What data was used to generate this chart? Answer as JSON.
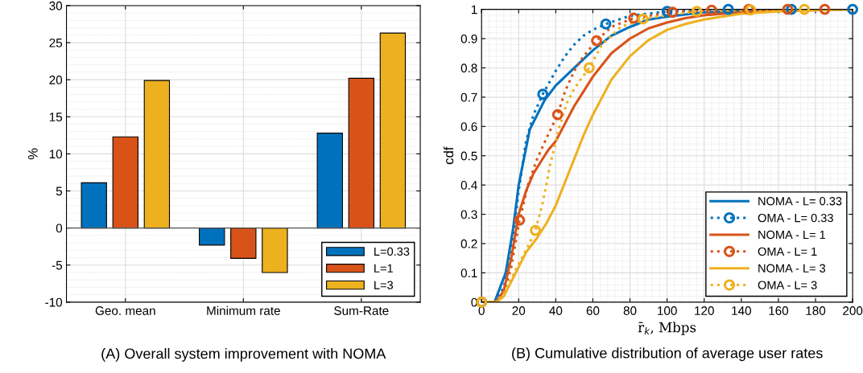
{
  "chart_data": [
    {
      "type": "bar",
      "title": "(A) Overall system improvement with NOMA",
      "ylabel": "%",
      "categories": [
        "Geo. mean",
        "Minimum rate",
        "Sum-Rate"
      ],
      "series": [
        {
          "name": "L=0.33",
          "color": "#0072bd",
          "values": [
            6.1,
            -2.3,
            12.8
          ]
        },
        {
          "name": "L=1",
          "color": "#d95319",
          "values": [
            12.3,
            -4.1,
            20.2
          ]
        },
        {
          "name": "L=3",
          "color": "#edb120",
          "values": [
            19.9,
            -6.0,
            26.3
          ]
        }
      ],
      "ylim": [
        -10,
        30
      ],
      "yticks": [
        -10,
        -5,
        0,
        5,
        10,
        15,
        20,
        25,
        30
      ],
      "grid": true,
      "legend": "bottom right"
    },
    {
      "type": "line",
      "title": "(B) Cumulative distribution of average user rates",
      "xlabel": "r̄$_{k}$, Mbps",
      "ylabel": "cdf",
      "series": [
        {
          "name": "NOMA - L= 0.33",
          "color": "#0072bd",
          "line_style": "solid",
          "x": [
            0,
            7,
            13,
            17,
            20,
            26,
            34,
            40,
            50,
            60,
            70,
            80,
            90,
            100,
            120,
            140,
            200
          ],
          "values": [
            0,
            0,
            0.1,
            0.25,
            0.4,
            0.59,
            0.69,
            0.74,
            0.8,
            0.86,
            0.91,
            0.94,
            0.965,
            0.975,
            0.99,
            0.995,
            1
          ]
        },
        {
          "name": "OMA - L= 0.33",
          "color": "#0072bd",
          "line_style": "dotted",
          "x": [
            0,
            7,
            12,
            16,
            20,
            24,
            28,
            33,
            40,
            45,
            50,
            55,
            60,
            67,
            80,
            100,
            133,
            200
          ],
          "values": [
            0,
            0,
            0.05,
            0.17,
            0.38,
            0.55,
            0.64,
            0.71,
            0.79,
            0.84,
            0.88,
            0.91,
            0.93,
            0.95,
            0.978,
            0.993,
            1,
            1
          ]
        },
        {
          "type": "scatter",
          "color": "#0072bd",
          "marker": "circle",
          "x": [
            0,
            33,
            67,
            100,
            133,
            167,
            200
          ],
          "values": [
            0,
            0.71,
            0.95,
            0.993,
            1,
            1,
            1
          ]
        },
        {
          "name": "NOMA - L= 1",
          "color": "#d95319",
          "line_style": "solid",
          "x": [
            0,
            8,
            12,
            16,
            20,
            24,
            28,
            32,
            36,
            40,
            45,
            50,
            55,
            60,
            65,
            70,
            80,
            90,
            100,
            110,
            120,
            140,
            160,
            200
          ],
          "values": [
            0,
            0,
            0.04,
            0.15,
            0.3,
            0.38,
            0.44,
            0.48,
            0.52,
            0.55,
            0.61,
            0.67,
            0.72,
            0.77,
            0.81,
            0.85,
            0.9,
            0.935,
            0.955,
            0.97,
            0.98,
            0.99,
            0.996,
            1
          ]
        },
        {
          "name": "OMA - L= 1",
          "color": "#d95319",
          "line_style": "dotted",
          "x": [
            0,
            7,
            12,
            16,
            20.5,
            25,
            30,
            35,
            41,
            45,
            50,
            55,
            62,
            70,
            82,
            103,
            124,
            144,
            200
          ],
          "values": [
            0,
            0,
            0.03,
            0.12,
            0.28,
            0.4,
            0.49,
            0.56,
            0.64,
            0.72,
            0.79,
            0.84,
            0.893,
            0.94,
            0.97,
            0.99,
            0.997,
            1,
            1
          ]
        },
        {
          "type": "scatter",
          "color": "#d95319",
          "marker": "circle",
          "x": [
            0,
            20.5,
            41,
            62,
            82,
            103,
            124,
            144,
            165,
            185
          ],
          "values": [
            0,
            0.28,
            0.64,
            0.893,
            0.97,
            0.99,
            0.997,
            1,
            1,
            1
          ]
        },
        {
          "name": "NOMA - L= 3",
          "color": "#edb120",
          "line_style": "solid",
          "x": [
            0,
            8,
            12,
            16,
            20,
            24,
            30,
            35,
            40,
            45,
            50,
            55,
            60,
            65,
            70,
            80,
            90,
            100,
            110,
            120,
            140,
            160,
            200
          ],
          "values": [
            0,
            0,
            0.02,
            0.07,
            0.12,
            0.17,
            0.22,
            0.27,
            0.33,
            0.41,
            0.49,
            0.57,
            0.64,
            0.7,
            0.76,
            0.84,
            0.895,
            0.93,
            0.95,
            0.965,
            0.985,
            0.993,
            1
          ]
        },
        {
          "name": "OMA - L= 3",
          "color": "#edb120",
          "line_style": "dotted",
          "x": [
            0,
            8,
            12,
            16,
            20,
            25,
            29,
            33,
            37,
            42,
            46,
            50,
            58,
            65,
            75,
            87,
            100,
            116,
            145,
            200
          ],
          "values": [
            0,
            0,
            0.03,
            0.08,
            0.13,
            0.19,
            0.245,
            0.34,
            0.47,
            0.6,
            0.68,
            0.73,
            0.8,
            0.88,
            0.94,
            0.967,
            0.98,
            0.993,
            0.998,
            1
          ]
        },
        {
          "type": "scatter",
          "color": "#edb120",
          "marker": "circle",
          "x": [
            0,
            29,
            58,
            87,
            116,
            145,
            174
          ],
          "values": [
            0,
            0.245,
            0.8,
            0.967,
            0.993,
            0.998,
            1
          ]
        }
      ],
      "xlim": [
        0,
        200
      ],
      "xticks": [
        0,
        20,
        40,
        60,
        80,
        100,
        120,
        140,
        160,
        180,
        200
      ],
      "ylim": [
        0,
        1
      ],
      "yticks": [
        0,
        0.1,
        0.2,
        0.3,
        0.4,
        0.5,
        0.6,
        0.7,
        0.8,
        0.9,
        1
      ],
      "grid": true,
      "legend": "bottom right"
    }
  ]
}
